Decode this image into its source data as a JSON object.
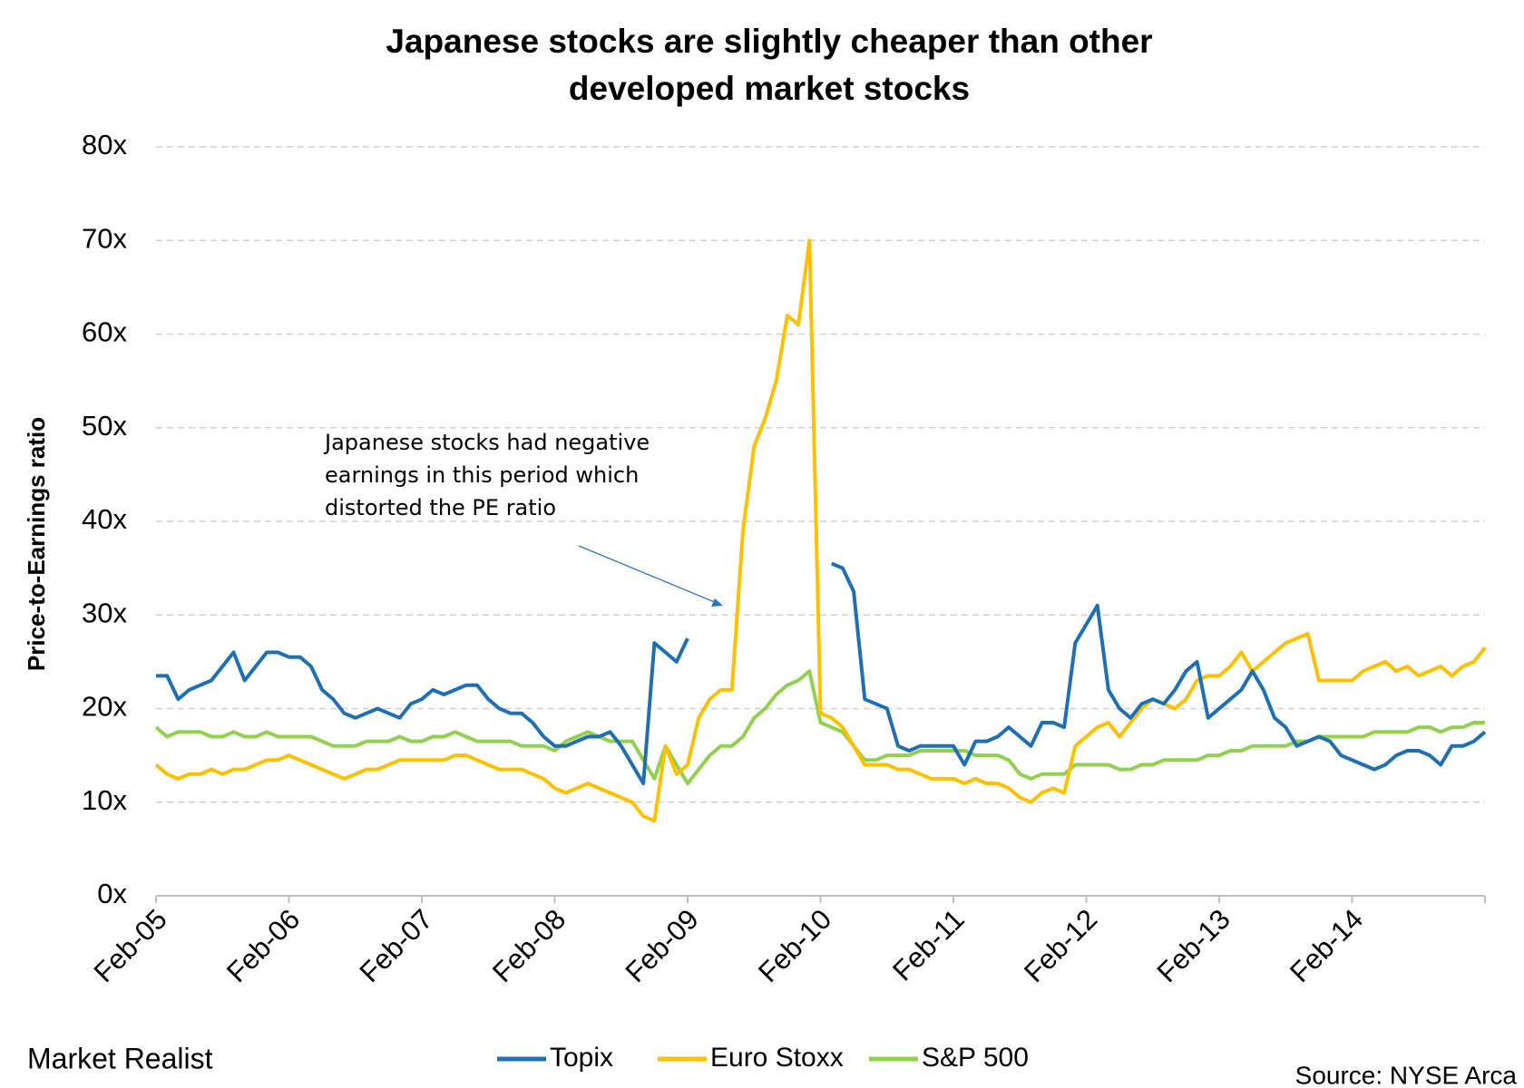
{
  "chart_data": {
    "type": "line",
    "title": "Japanese stocks are slightly cheaper than other developed market stocks",
    "y_label": "Price-to-Earnings ratio",
    "annotation": "Japanese stocks had negative earnings in this period which distorted the PE ratio",
    "source": "Source: NYSE Arca",
    "logo": "Market Realist",
    "x": [
      "Feb-05",
      "Mar-05",
      "Apr-05",
      "May-05",
      "Jun-05",
      "Jul-05",
      "Aug-05",
      "Sep-05",
      "Oct-05",
      "Nov-05",
      "Dec-05",
      "Jan-06",
      "Feb-06",
      "Mar-06",
      "Apr-06",
      "May-06",
      "Jun-06",
      "Jul-06",
      "Aug-06",
      "Sep-06",
      "Oct-06",
      "Nov-06",
      "Dec-06",
      "Jan-07",
      "Feb-07",
      "Mar-07",
      "Apr-07",
      "May-07",
      "Jun-07",
      "Jul-07",
      "Aug-07",
      "Sep-07",
      "Oct-07",
      "Nov-07",
      "Dec-07",
      "Jan-08",
      "Feb-08",
      "Mar-08",
      "Apr-08",
      "May-08",
      "Jun-08",
      "Jul-08",
      "Aug-08",
      "Sep-08",
      "Oct-08",
      "Nov-08",
      "Dec-08",
      "Jan-09",
      "Feb-09",
      "Mar-09",
      "Apr-09",
      "May-09",
      "Jun-09",
      "Jul-09",
      "Aug-09",
      "Sep-09",
      "Oct-09",
      "Nov-09",
      "Dec-09",
      "Jan-10",
      "Feb-10",
      "Mar-10",
      "Apr-10",
      "May-10",
      "Jun-10",
      "Jul-10",
      "Aug-10",
      "Sep-10",
      "Oct-10",
      "Nov-10",
      "Dec-10",
      "Jan-11",
      "Feb-11",
      "Mar-11",
      "Apr-11",
      "May-11",
      "Jun-11",
      "Jul-11",
      "Aug-11",
      "Sep-11",
      "Oct-11",
      "Nov-11",
      "Dec-11",
      "Jan-12",
      "Feb-12",
      "Mar-12",
      "Apr-12",
      "May-12",
      "Jun-12",
      "Jul-12",
      "Aug-12",
      "Sep-12",
      "Oct-12",
      "Nov-12",
      "Dec-12",
      "Jan-13",
      "Feb-13",
      "Mar-13",
      "Apr-13",
      "May-13",
      "Jun-13",
      "Jul-13",
      "Aug-13",
      "Sep-13",
      "Oct-13",
      "Nov-13",
      "Dec-13",
      "Jan-14",
      "Feb-14",
      "Mar-14",
      "Apr-14",
      "May-14",
      "Jun-14",
      "Jul-14",
      "Aug-14",
      "Sep-14",
      "Oct-14",
      "Nov-14",
      "Dec-14",
      "Jan-15",
      "Feb-15"
    ],
    "xticks": [
      "Feb-05",
      "Feb-06",
      "Feb-07",
      "Feb-08",
      "Feb-09",
      "Feb-10",
      "Feb-11",
      "Feb-12",
      "Feb-13",
      "Feb-14"
    ],
    "ylim": [
      0,
      80
    ],
    "yticks": [
      {
        "value": 0,
        "label": "0x"
      },
      {
        "value": 10,
        "label": "10x"
      },
      {
        "value": 20,
        "label": "20x"
      },
      {
        "value": 30,
        "label": "30x"
      },
      {
        "value": 40,
        "label": "40x"
      },
      {
        "value": 50,
        "label": "50x"
      },
      {
        "value": 60,
        "label": "60x"
      },
      {
        "value": 70,
        "label": "70x"
      },
      {
        "value": 80,
        "label": "80x"
      }
    ],
    "grid": true,
    "series": [
      {
        "name": "Topix",
        "color": "#1f6fb2",
        "values": [
          23.5,
          23.5,
          21,
          22,
          22.5,
          23,
          24.5,
          26,
          23,
          24.5,
          26,
          26,
          25.5,
          25.5,
          24.5,
          22,
          21,
          19.5,
          19,
          19.5,
          20,
          19.5,
          19,
          20.5,
          21,
          22,
          21.5,
          22,
          22.5,
          22.5,
          21,
          20,
          19.5,
          19.5,
          18.5,
          17,
          16,
          16,
          16.5,
          17,
          17,
          17.5,
          16,
          14,
          12,
          27,
          26,
          25,
          27.5,
          null,
          null,
          null,
          null,
          null,
          null,
          null,
          null,
          null,
          null,
          null,
          null,
          35.5,
          35,
          32.5,
          21,
          20.5,
          20,
          16,
          15.5,
          16,
          16,
          16,
          16,
          14,
          16.5,
          16.5,
          17,
          18,
          17,
          16,
          18.5,
          18.5,
          18,
          27,
          29,
          31,
          22,
          20,
          19,
          20.5,
          21,
          20.5,
          22,
          24,
          25,
          19,
          20,
          21,
          22,
          24,
          22,
          19,
          18,
          16,
          16.5,
          17,
          16.5,
          15,
          14.5,
          14,
          13.5,
          14,
          15,
          15.5,
          15.5,
          15,
          14,
          16,
          16,
          16.5,
          17.5
        ]
      },
      {
        "name": "Euro Stoxx",
        "color": "#ffc000",
        "values": [
          14,
          13,
          12.5,
          13,
          13,
          13.5,
          13,
          13.5,
          13.5,
          14,
          14.5,
          14.5,
          15,
          14.5,
          14,
          13.5,
          13,
          12.5,
          13,
          13.5,
          13.5,
          14,
          14.5,
          14.5,
          14.5,
          14.5,
          14.5,
          15,
          15,
          14.5,
          14,
          13.5,
          13.5,
          13.5,
          13,
          12.5,
          11.5,
          11,
          11.5,
          12,
          11.5,
          11,
          10.5,
          10,
          8.5,
          8,
          16,
          13,
          14,
          19,
          21,
          22,
          22,
          39,
          48,
          51,
          55,
          62,
          61,
          70,
          19.5,
          19,
          18,
          16,
          14,
          14,
          14,
          13.5,
          13.5,
          13,
          12.5,
          12.5,
          12.5,
          12,
          12.5,
          12,
          12,
          11.5,
          10.5,
          10,
          11,
          11.5,
          11,
          16,
          17,
          18,
          18.5,
          17,
          18.5,
          20,
          21,
          20.5,
          20,
          21,
          23,
          23.5,
          23.5,
          24.5,
          26,
          24,
          25,
          26,
          27,
          27.5,
          28,
          23,
          23,
          23,
          23,
          24,
          24.5,
          25,
          24,
          24.5,
          23.5,
          24,
          24.5,
          23.5,
          24.5,
          25,
          26.5
        ]
      },
      {
        "name": "S&P 500",
        "color": "#92d050",
        "values": [
          18,
          17,
          17.5,
          17.5,
          17.5,
          17,
          17,
          17.5,
          17,
          17,
          17.5,
          17,
          17,
          17,
          17,
          16.5,
          16,
          16,
          16,
          16.5,
          16.5,
          16.5,
          17,
          16.5,
          16.5,
          17,
          17,
          17.5,
          17,
          16.5,
          16.5,
          16.5,
          16.5,
          16,
          16,
          16,
          15.5,
          16.5,
          17,
          17.5,
          17,
          16.5,
          16.5,
          16.5,
          14.5,
          12.5,
          16,
          14,
          12,
          13.5,
          15,
          16,
          16,
          17,
          19,
          20,
          21.5,
          22.5,
          23,
          24,
          18.5,
          18,
          17.5,
          16,
          14.5,
          14.5,
          15,
          15,
          15,
          15.5,
          15.5,
          15.5,
          15.5,
          15.5,
          15,
          15,
          15,
          14.5,
          13,
          12.5,
          13,
          13,
          13,
          14,
          14,
          14,
          14,
          13.5,
          13.5,
          14,
          14,
          14.5,
          14.5,
          14.5,
          14.5,
          15,
          15,
          15.5,
          15.5,
          16,
          16,
          16,
          16,
          16.5,
          16.5,
          17,
          17,
          17,
          17,
          17,
          17.5,
          17.5,
          17.5,
          17.5,
          18,
          18,
          17.5,
          18,
          18,
          18.5,
          18.5
        ]
      }
    ]
  }
}
